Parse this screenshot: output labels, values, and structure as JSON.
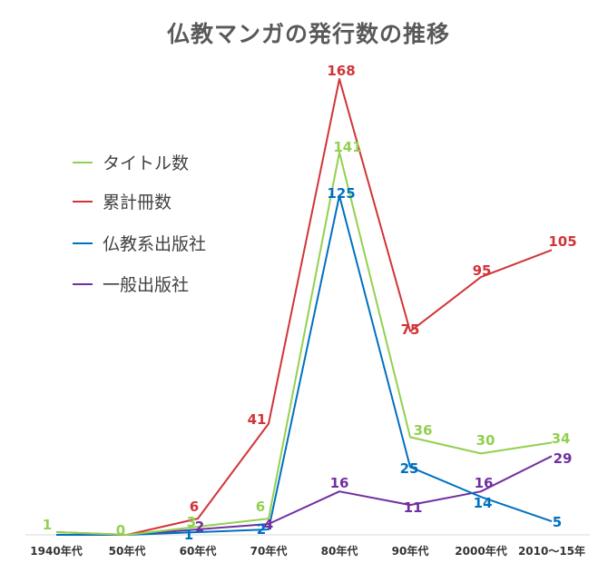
{
  "chart_data": {
    "type": "line",
    "title": "仏教マンガの発行数の推移",
    "xlabel": "",
    "ylabel": "",
    "categories": [
      "1940年代",
      "50年代",
      "60年代",
      "70年代",
      "80年代",
      "90年代",
      "2000年代",
      "2010～15年"
    ],
    "ylim": [
      0,
      175
    ],
    "grid": false,
    "legend_position": "left",
    "series": [
      {
        "name": "タイトル数",
        "color": "#92d050",
        "values": [
          1,
          0,
          3,
          6,
          141,
          36,
          30,
          34
        ]
      },
      {
        "name": "累計冊数",
        "color": "#d13438",
        "values": [
          1,
          0,
          6,
          41,
          168,
          75,
          95,
          105
        ]
      },
      {
        "name": "仏教系出版社",
        "color": "#0070c0",
        "values": [
          0,
          0,
          1,
          2,
          125,
          25,
          14,
          5
        ]
      },
      {
        "name": "一般出版社",
        "color": "#7030a0",
        "values": [
          0,
          0,
          2,
          4,
          16,
          11,
          16,
          29
        ]
      }
    ],
    "data_labels": {
      "タイトル数": [
        "1",
        "0",
        "3",
        "6",
        "141",
        "36",
        "30",
        "34"
      ],
      "累計冊数": [
        "",
        "",
        "6",
        "41",
        "168",
        "75",
        "95",
        "105"
      ],
      "仏教系出版社": [
        "",
        "",
        "1",
        "2",
        "125",
        "25",
        "14",
        "5"
      ],
      "一般出版社": [
        "",
        "",
        "2",
        "4",
        "16",
        "11",
        "16",
        "29"
      ]
    }
  }
}
